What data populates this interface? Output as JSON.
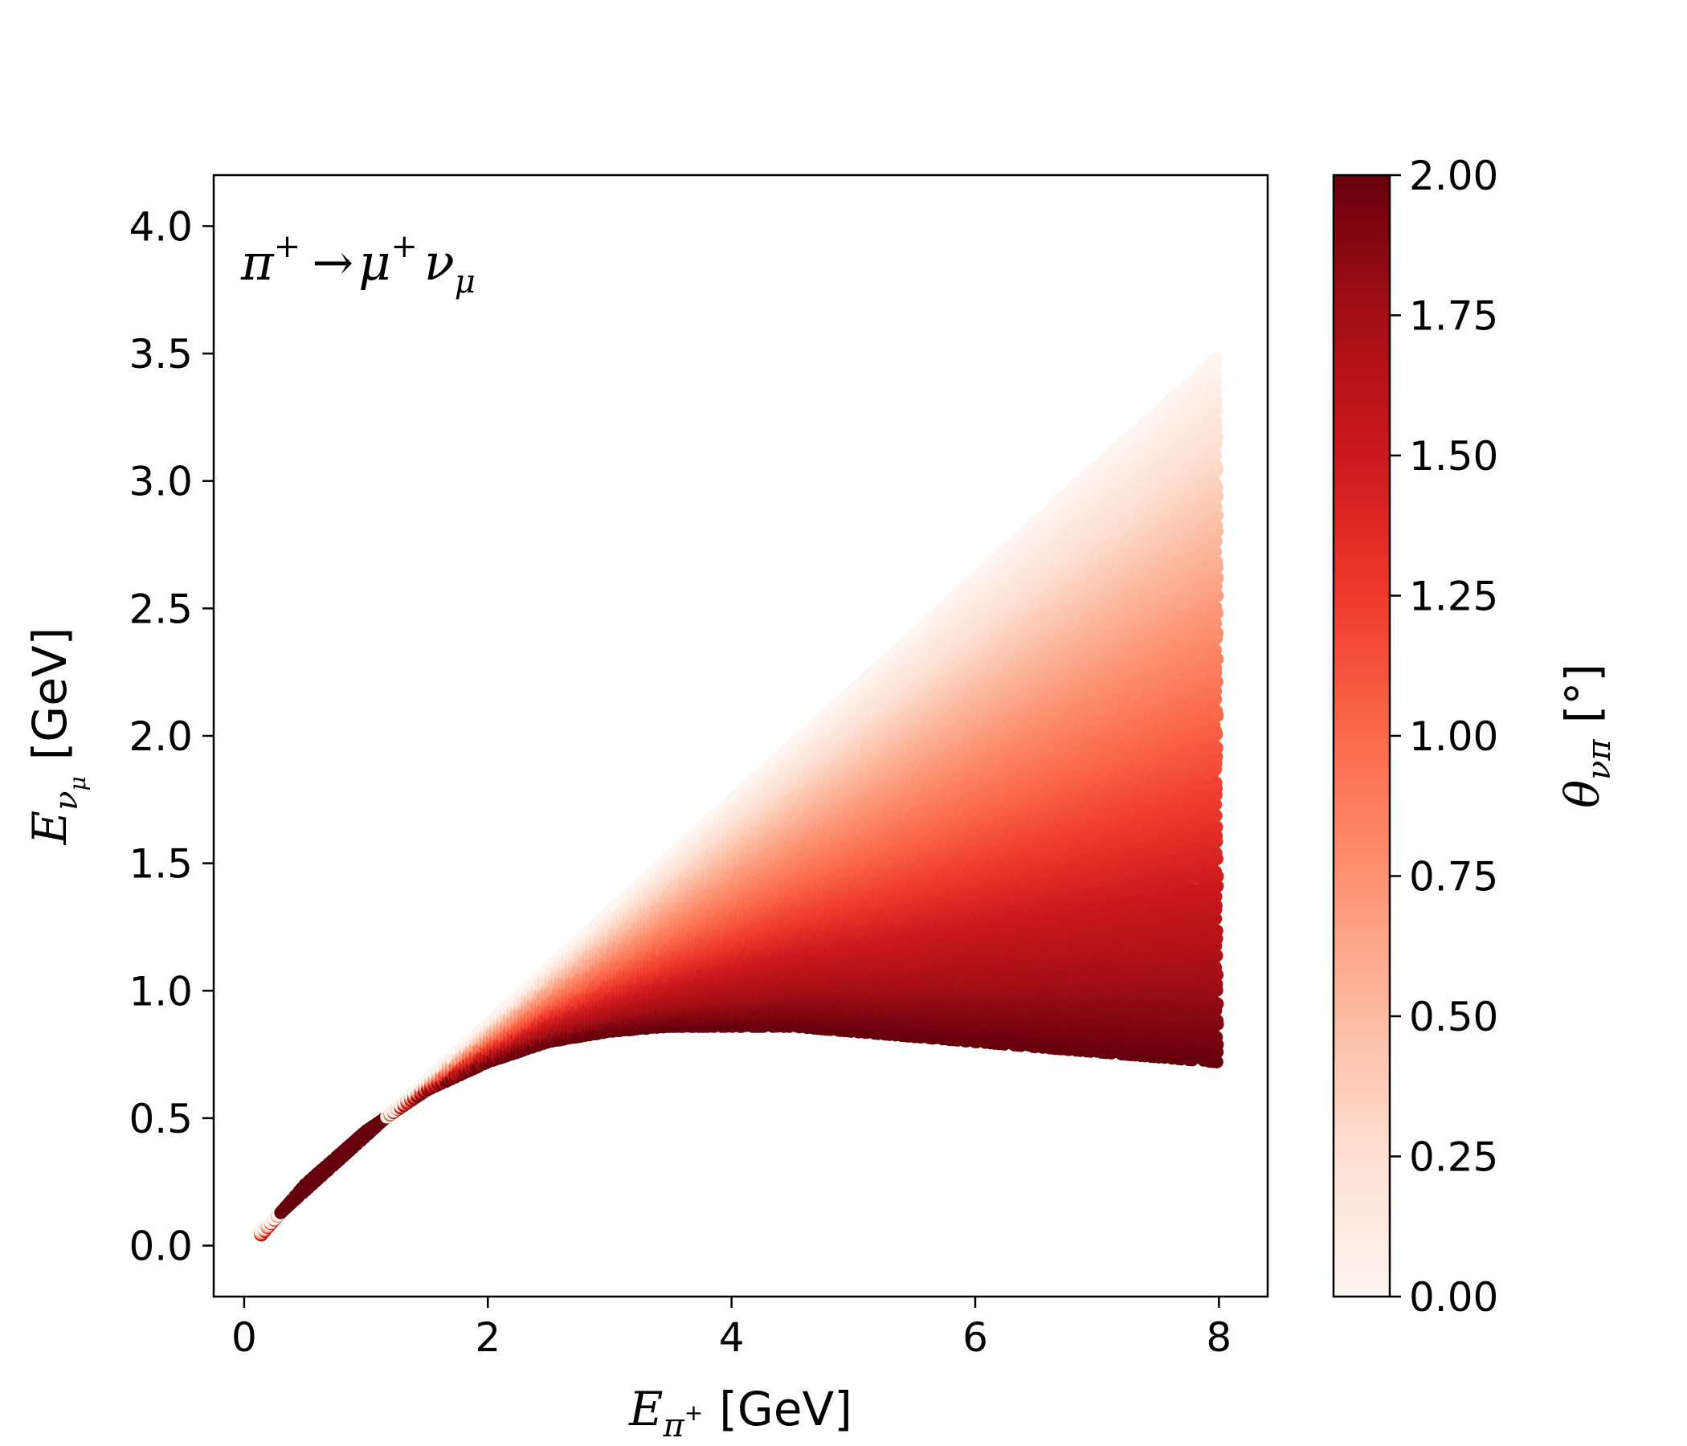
{
  "chart_data": {
    "type": "scatter",
    "annotation": {
      "lhs": "π",
      "lhs_sup": "+",
      "arrow": "→",
      "mu": "μ",
      "mu_sup": "+",
      "nu": "ν",
      "nu_sub": "μ"
    },
    "xlabel": {
      "symbol": "E",
      "sub": "π",
      "sub_sup": "+",
      "unit": "[GeV]"
    },
    "ylabel": {
      "symbol": "E",
      "sub": "ν",
      "sub_sub": "μ",
      "unit": "[GeV]"
    },
    "xlim": [
      -0.25,
      8.4
    ],
    "ylim": [
      -0.2,
      4.2
    ],
    "xticks": [
      0,
      2,
      4,
      6,
      8
    ],
    "xtick_labels": [
      "0",
      "2",
      "4",
      "6",
      "8"
    ],
    "yticks": [
      0.0,
      0.5,
      1.0,
      1.5,
      2.0,
      2.5,
      3.0,
      3.5,
      4.0
    ],
    "ytick_labels": [
      "0.0",
      "0.5",
      "1.0",
      "1.5",
      "2.0",
      "2.5",
      "3.0",
      "3.5",
      "4.0"
    ],
    "colorbar": {
      "label": {
        "symbol": "θ",
        "sub": "νπ",
        "unit": "[°]"
      },
      "range": [
        0.0,
        2.0
      ],
      "ticks": [
        0.0,
        0.25,
        0.5,
        0.75,
        1.0,
        1.25,
        1.5,
        1.75,
        2.0
      ],
      "tick_labels": [
        "0.00",
        "0.25",
        "0.50",
        "0.75",
        "1.00",
        "1.25",
        "1.50",
        "1.75",
        "2.00"
      ],
      "colormap": "Reds",
      "colors": [
        "#fff5f0",
        "#fee0d2",
        "#fcbba1",
        "#fc9272",
        "#fb6a4a",
        "#ef3b2c",
        "#cb181d",
        "#a50f15",
        "#67000d"
      ]
    },
    "series": [
      {
        "x_range": [
          0.14,
          8.0
        ],
        "upper_boundary": {
          "x": [
            0.14,
            1,
            2,
            3,
            4,
            5,
            6,
            7,
            8
          ],
          "y": [
            0.06,
            0.43,
            0.87,
            1.31,
            1.75,
            2.18,
            2.62,
            3.06,
            3.49
          ]
        },
        "lower_boundary": {
          "x": [
            0.14,
            0.5,
            1,
            1.5,
            2,
            2.5,
            3,
            3.5,
            4,
            4.5,
            5,
            5.5,
            6,
            6.5,
            7,
            7.5,
            8
          ],
          "y": [
            0.04,
            0.24,
            0.45,
            0.61,
            0.72,
            0.8,
            0.84,
            0.86,
            0.86,
            0.86,
            0.84,
            0.82,
            0.8,
            0.78,
            0.76,
            0.74,
            0.72
          ]
        },
        "color_rule": "angle 0 at upper boundary, 2.00 at lower boundary"
      }
    ]
  }
}
